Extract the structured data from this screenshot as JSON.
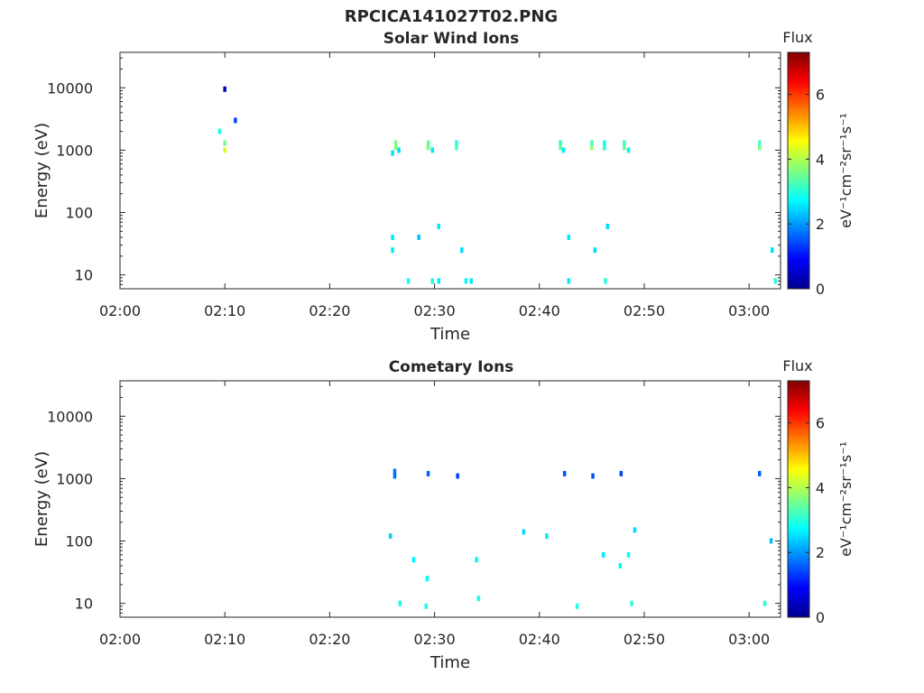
{
  "figure": {
    "title": "RPCICA141027T02.PNG"
  },
  "chart_data": [
    {
      "type": "heatmap",
      "title": "Solar Wind Ions",
      "xlabel": "Time",
      "ylabel": "Energy (eV)",
      "xscale": "time",
      "yscale": "log",
      "xlim": [
        "02:00",
        "03:03"
      ],
      "ylim": [
        6,
        37000
      ],
      "xticks": [
        "02:00",
        "02:10",
        "02:20",
        "02:30",
        "02:40",
        "02:50",
        "03:00"
      ],
      "yticks": [
        10,
        100,
        1000,
        10000
      ],
      "ytick_labels": [
        "10",
        "100",
        "1000",
        "10000"
      ],
      "colorbar": {
        "label": "Flux",
        "unit": "eV⁻¹cm⁻²sr⁻¹s⁻¹",
        "range": [
          0,
          7.3
        ],
        "ticks": [
          0,
          2,
          4,
          6
        ],
        "colormap": "jet"
      },
      "grid": false,
      "note_on_cells": "cells are [time_min_after_02:00, energy_eV, log10_flux_value]",
      "cells": [
        [
          10,
          9500,
          0.4
        ],
        [
          10,
          1300,
          3.6
        ],
        [
          10,
          1000,
          4.3
        ],
        [
          9.5,
          2000,
          2.9
        ],
        [
          11,
          3000,
          1.4
        ],
        [
          26.3,
          1100,
          3.7
        ],
        [
          26.3,
          1300,
          3.6
        ],
        [
          26.6,
          1000,
          2.5
        ],
        [
          26.0,
          900,
          2.5
        ],
        [
          29.4,
          1100,
          3.6
        ],
        [
          29.4,
          1300,
          3.4
        ],
        [
          29.8,
          1000,
          2.6
        ],
        [
          32.1,
          1100,
          3.3
        ],
        [
          32.1,
          1300,
          3.0
        ],
        [
          42.0,
          1100,
          3.5
        ],
        [
          42.0,
          1300,
          3.1
        ],
        [
          42.3,
          1000,
          2.6
        ],
        [
          45.0,
          1100,
          3.8
        ],
        [
          45.0,
          1300,
          3.3
        ],
        [
          46.2,
          1100,
          3.0
        ],
        [
          46.2,
          1300,
          2.8
        ],
        [
          48.1,
          1100,
          3.5
        ],
        [
          48.1,
          1300,
          3.2
        ],
        [
          48.5,
          1000,
          2.7
        ],
        [
          61.0,
          1100,
          3.6
        ],
        [
          61.0,
          1300,
          3.3
        ],
        [
          26.0,
          40,
          2.6
        ],
        [
          26.0,
          25,
          2.6
        ],
        [
          27.5,
          8,
          2.8
        ],
        [
          28.5,
          40,
          2.3
        ],
        [
          29.8,
          8,
          2.9
        ],
        [
          30.4,
          60,
          2.6
        ],
        [
          30.4,
          8,
          2.6
        ],
        [
          32.6,
          25,
          2.5
        ],
        [
          33.0,
          8,
          2.7
        ],
        [
          33.5,
          8,
          2.6
        ],
        [
          42.8,
          40,
          2.6
        ],
        [
          42.8,
          8,
          2.6
        ],
        [
          45.3,
          25,
          2.5
        ],
        [
          46.3,
          8,
          3.0
        ],
        [
          46.5,
          60,
          2.5
        ],
        [
          62.2,
          25,
          2.5
        ],
        [
          62.5,
          8,
          3.0
        ]
      ]
    },
    {
      "type": "heatmap",
      "title": "Cometary Ions",
      "xlabel": "Time",
      "ylabel": "Energy (eV)",
      "xscale": "time",
      "yscale": "log",
      "xlim": [
        "02:00",
        "03:03"
      ],
      "ylim": [
        6,
        37000
      ],
      "xticks": [
        "02:00",
        "02:10",
        "02:20",
        "02:30",
        "02:40",
        "02:50",
        "03:00"
      ],
      "yticks": [
        10,
        100,
        1000,
        10000
      ],
      "ytick_labels": [
        "10",
        "100",
        "1000",
        "10000"
      ],
      "colorbar": {
        "label": "Flux",
        "unit": "eV⁻¹cm⁻²sr⁻¹s⁻¹",
        "range": [
          0,
          7.3
        ],
        "ticks": [
          0,
          2,
          4,
          6
        ],
        "colormap": "jet"
      },
      "grid": false,
      "note_on_cells": "cells are [time_min_after_02:00, energy_eV, log10_flux_value]",
      "cells": [
        [
          26.2,
          1100,
          1.7
        ],
        [
          26.2,
          1300,
          1.7
        ],
        [
          29.4,
          1200,
          1.6
        ],
        [
          32.2,
          1100,
          1.4
        ],
        [
          42.4,
          1200,
          1.5
        ],
        [
          45.1,
          1100,
          1.5
        ],
        [
          47.8,
          1200,
          1.4
        ],
        [
          61.0,
          1200,
          1.6
        ],
        [
          25.8,
          120,
          2.4
        ],
        [
          28.0,
          50,
          2.7
        ],
        [
          29.3,
          25,
          2.7
        ],
        [
          34.0,
          50,
          2.7
        ],
        [
          34.2,
          12,
          2.9
        ],
        [
          26.7,
          10,
          2.9
        ],
        [
          29.2,
          9,
          2.9
        ],
        [
          38.5,
          140,
          2.5
        ],
        [
          40.7,
          120,
          2.6
        ],
        [
          43.6,
          9,
          2.9
        ],
        [
          46.1,
          60,
          2.6
        ],
        [
          47.7,
          40,
          2.7
        ],
        [
          48.5,
          60,
          2.8
        ],
        [
          48.8,
          10,
          3.1
        ],
        [
          49.1,
          150,
          2.5
        ],
        [
          61.5,
          10,
          3.0
        ],
        [
          62.1,
          100,
          2.3
        ]
      ]
    }
  ]
}
